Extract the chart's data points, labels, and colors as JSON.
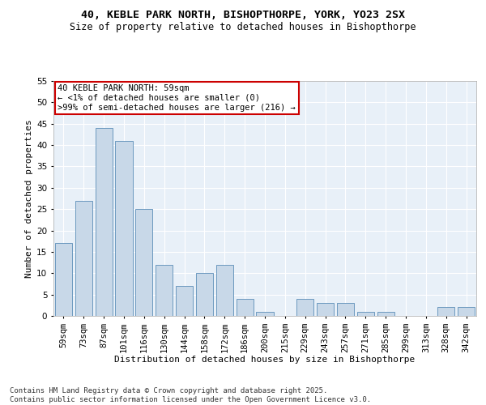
{
  "title1": "40, KEBLE PARK NORTH, BISHOPTHORPE, YORK, YO23 2SX",
  "title2": "Size of property relative to detached houses in Bishopthorpe",
  "xlabel": "Distribution of detached houses by size in Bishopthorpe",
  "ylabel": "Number of detached properties",
  "categories": [
    "59sqm",
    "73sqm",
    "87sqm",
    "101sqm",
    "116sqm",
    "130sqm",
    "144sqm",
    "158sqm",
    "172sqm",
    "186sqm",
    "200sqm",
    "215sqm",
    "229sqm",
    "243sqm",
    "257sqm",
    "271sqm",
    "285sqm",
    "299sqm",
    "313sqm",
    "328sqm",
    "342sqm"
  ],
  "values": [
    17,
    27,
    44,
    41,
    25,
    12,
    7,
    10,
    12,
    4,
    1,
    0,
    4,
    3,
    3,
    1,
    1,
    0,
    0,
    2,
    2
  ],
  "bar_color": "#c8d8e8",
  "bar_edge_color": "#5b8db8",
  "annotation_box_color": "#ffffff",
  "annotation_box_edge": "#cc0000",
  "annotation_text": "40 KEBLE PARK NORTH: 59sqm\n← <1% of detached houses are smaller (0)\n>99% of semi-detached houses are larger (216) →",
  "ylim": [
    0,
    55
  ],
  "yticks": [
    0,
    5,
    10,
    15,
    20,
    25,
    30,
    35,
    40,
    45,
    50,
    55
  ],
  "bg_color": "#e8f0f8",
  "footer": "Contains HM Land Registry data © Crown copyright and database right 2025.\nContains public sector information licensed under the Open Government Licence v3.0.",
  "title1_fontsize": 9.5,
  "title2_fontsize": 8.5,
  "xlabel_fontsize": 8,
  "ylabel_fontsize": 8,
  "tick_fontsize": 7.5,
  "annotation_fontsize": 7.5,
  "footer_fontsize": 6.5
}
